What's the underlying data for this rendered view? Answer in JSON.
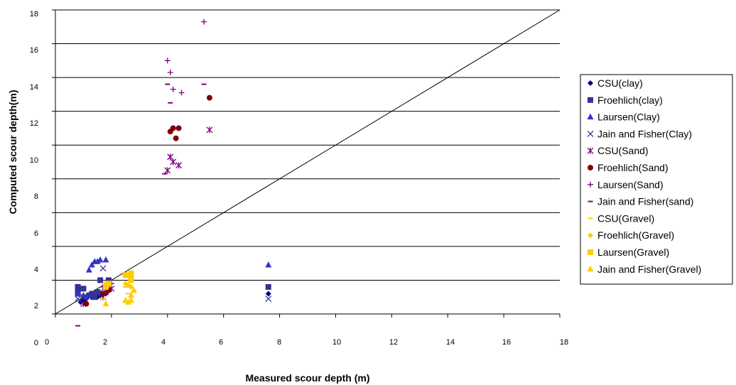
{
  "chart_data": {
    "type": "scatter",
    "xlabel": "Measured scour depth (m)",
    "ylabel": "Computed scour depth(m)",
    "xlim": [
      0,
      18
    ],
    "ylim": [
      0,
      18
    ],
    "x_ticks": [
      "0",
      "2",
      "4",
      "6",
      "8",
      "10",
      "12",
      "14",
      "16",
      "18"
    ],
    "y_ticks": [
      "0",
      "2",
      "4",
      "6",
      "8",
      "10",
      "12",
      "14",
      "16",
      "18"
    ],
    "grid": "horizontal",
    "legend_position": "right",
    "reference_line": {
      "kind": "line of perfect agreement",
      "from": [
        0,
        0
      ],
      "to": [
        18,
        18
      ]
    },
    "series": [
      {
        "name": "CSU(clay)",
        "marker": "diamond",
        "color": "#000080",
        "points": [
          [
            0.9,
            0.7
          ],
          [
            1.0,
            0.8
          ],
          [
            1.1,
            0.9
          ],
          [
            1.3,
            1.0
          ],
          [
            1.5,
            1.0
          ],
          [
            1.6,
            1.1
          ],
          [
            1.8,
            1.2
          ],
          [
            7.6,
            1.2
          ]
        ]
      },
      {
        "name": "Froehlich(clay)",
        "marker": "square",
        "color": "#333399",
        "points": [
          [
            0.8,
            1.2
          ],
          [
            0.8,
            1.4
          ],
          [
            0.8,
            1.6
          ],
          [
            1.0,
            1.5
          ],
          [
            1.2,
            1.1
          ],
          [
            1.3,
            1.2
          ],
          [
            1.4,
            1.0
          ],
          [
            1.5,
            1.3
          ],
          [
            1.6,
            2.0
          ],
          [
            1.9,
            2.0
          ],
          [
            7.6,
            1.6
          ]
        ]
      },
      {
        "name": "Laursen(Clay)",
        "marker": "triangle",
        "color": "#3333CC",
        "points": [
          [
            0.8,
            1.2
          ],
          [
            1.0,
            1.1
          ],
          [
            1.1,
            1.0
          ],
          [
            1.2,
            2.6
          ],
          [
            1.3,
            2.9
          ],
          [
            1.4,
            3.1
          ],
          [
            1.5,
            3.1
          ],
          [
            1.6,
            3.2
          ],
          [
            1.8,
            3.2
          ],
          [
            7.6,
            2.9
          ]
        ]
      },
      {
        "name": "Jain and Fisher(Clay)",
        "marker": "x",
        "color": "#333399",
        "points": [
          [
            0.8,
            0.9
          ],
          [
            1.0,
            1.0
          ],
          [
            1.2,
            1.0
          ],
          [
            1.4,
            1.1
          ],
          [
            1.5,
            1.2
          ],
          [
            1.6,
            1.3
          ],
          [
            1.7,
            2.7
          ],
          [
            7.6,
            0.9
          ]
        ]
      },
      {
        "name": "CSU(Sand)",
        "marker": "asterisk",
        "color": "#800080",
        "points": [
          [
            1.0,
            0.6
          ],
          [
            1.7,
            1.0
          ],
          [
            1.8,
            1.3
          ],
          [
            2.0,
            1.5
          ],
          [
            4.0,
            8.5
          ],
          [
            4.1,
            9.3
          ],
          [
            4.2,
            9.0
          ],
          [
            4.4,
            8.8
          ],
          [
            5.5,
            10.9
          ]
        ]
      },
      {
        "name": "Froehlich(Sand)",
        "marker": "circle",
        "color": "#800000",
        "points": [
          [
            1.1,
            0.6
          ],
          [
            1.7,
            1.2
          ],
          [
            1.9,
            1.4
          ],
          [
            4.1,
            10.8
          ],
          [
            4.2,
            11.0
          ],
          [
            4.3,
            10.4
          ],
          [
            4.4,
            11.0
          ],
          [
            5.5,
            12.8
          ]
        ]
      },
      {
        "name": "Laursen(Sand)",
        "marker": "plus",
        "color": "#800080",
        "points": [
          [
            1.7,
            1.6
          ],
          [
            2.0,
            1.8
          ],
          [
            4.0,
            15.0
          ],
          [
            4.1,
            14.3
          ],
          [
            4.2,
            13.3
          ],
          [
            4.5,
            13.1
          ],
          [
            5.3,
            17.3
          ]
        ]
      },
      {
        "name": "Jain and Fisher(sand)",
        "marker": "dash",
        "color": "#800080",
        "points": [
          [
            0.8,
            -0.7
          ],
          [
            3.9,
            8.3
          ],
          [
            4.0,
            13.6
          ],
          [
            4.1,
            12.5
          ],
          [
            5.3,
            13.6
          ]
        ]
      },
      {
        "name": "CSU(Gravel)",
        "marker": "dash",
        "color": "#FFCC00",
        "points": [
          [
            1.7,
            0.9
          ],
          [
            2.5,
            1.6
          ],
          [
            2.6,
            1.2
          ]
        ]
      },
      {
        "name": "Froehlich(Gravel)",
        "marker": "diamond",
        "color": "#FFCC00",
        "points": [
          [
            1.8,
            1.8
          ],
          [
            2.5,
            1.8
          ],
          [
            2.6,
            1.7
          ],
          [
            2.7,
            2.0
          ],
          [
            2.7,
            1.6
          ]
        ]
      },
      {
        "name": "Laursen(Gravel)",
        "marker": "square",
        "color": "#FFCC00",
        "points": [
          [
            1.8,
            1.6
          ],
          [
            1.9,
            1.8
          ],
          [
            2.5,
            2.3
          ],
          [
            2.7,
            2.4
          ],
          [
            2.7,
            2.2
          ],
          [
            2.7,
            2.0
          ]
        ]
      },
      {
        "name": "Jain and Fisher(Gravel)",
        "marker": "triangle",
        "color": "#FFCC00",
        "points": [
          [
            1.8,
            0.6
          ],
          [
            2.5,
            0.8
          ],
          [
            2.6,
            0.7
          ],
          [
            2.7,
            0.8
          ],
          [
            2.7,
            1.1
          ],
          [
            2.8,
            1.4
          ]
        ]
      }
    ]
  }
}
